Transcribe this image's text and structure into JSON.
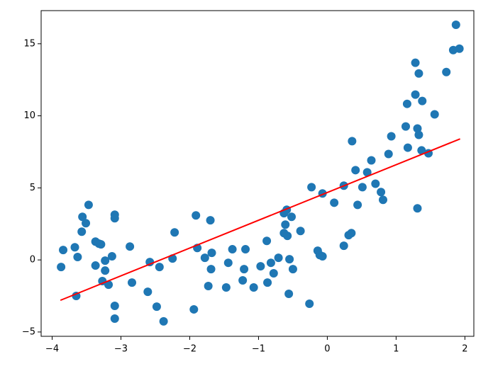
{
  "chart_data": {
    "type": "scatter",
    "xlim": [
      -4.16,
      2.13
    ],
    "ylim": [
      -5.3,
      17.3
    ],
    "xticks": [
      {
        "value": -4,
        "label": "−4"
      },
      {
        "value": -3,
        "label": "−3"
      },
      {
        "value": -2,
        "label": "−2"
      },
      {
        "value": -1,
        "label": "−1"
      },
      0,
      1,
      2
    ],
    "yticks": [
      {
        "value": -5,
        "label": "−5"
      },
      0,
      5,
      10,
      15
    ],
    "grid": false,
    "series": [
      {
        "color": "#1f77b4",
        "x": [
          -3.87,
          -3.84,
          -3.67,
          -3.63,
          -3.65,
          -3.57,
          -3.56,
          -3.51,
          -3.47,
          -3.37,
          -3.37,
          -3.32,
          -3.29,
          -3.27,
          -3.23,
          -3.23,
          -3.18,
          -3.13,
          -3.09,
          -3.09,
          -3.09,
          -3.09,
          -2.87,
          -2.84,
          -2.61,
          -2.58,
          -2.48,
          -2.44,
          -2.38,
          -2.25,
          -2.22,
          -1.94,
          -1.91,
          -1.89,
          -1.78,
          -1.73,
          -1.7,
          -1.68,
          -1.69,
          -1.44,
          -1.47,
          -1.38,
          -1.23,
          -1.21,
          -1.19,
          -1.07,
          -0.97,
          -0.88,
          -0.87,
          -0.82,
          -0.78,
          -0.71,
          -0.63,
          -0.61,
          -0.63,
          -0.59,
          -0.58,
          -0.56,
          -0.55,
          -0.52,
          -0.5,
          -0.39,
          -0.26,
          -0.23,
          -0.14,
          -0.11,
          -0.07,
          -0.07,
          0.1,
          0.24,
          0.24,
          0.31,
          0.35,
          0.36,
          0.41,
          0.44,
          0.51,
          0.58,
          0.64,
          0.7,
          0.78,
          0.81,
          0.89,
          0.93,
          1.14,
          1.16,
          1.17,
          1.28,
          1.28,
          1.31,
          1.33,
          1.31,
          1.33,
          1.37,
          1.38,
          1.47,
          1.56,
          1.73,
          1.83,
          1.87,
          1.92
        ],
        "values": [
          -0.49,
          0.69,
          0.88,
          0.2,
          -2.5,
          1.96,
          2.99,
          2.55,
          3.82,
          1.27,
          -0.39,
          1.13,
          1.08,
          -1.47,
          -0.05,
          -0.74,
          -1.72,
          0.25,
          3.14,
          2.89,
          -3.19,
          -4.07,
          0.93,
          -1.57,
          -2.21,
          -0.15,
          -3.24,
          -0.49,
          -4.26,
          0.1,
          1.91,
          -3.43,
          3.09,
          0.83,
          0.15,
          -1.81,
          2.75,
          0.49,
          -0.64,
          -0.2,
          -1.91,
          0.74,
          -1.42,
          -0.64,
          0.74,
          -1.91,
          -0.44,
          1.32,
          -1.57,
          -0.2,
          -0.93,
          0.15,
          1.86,
          2.45,
          3.24,
          3.48,
          1.67,
          -2.35,
          0.05,
          2.99,
          -0.64,
          2.01,
          -3.04,
          5.05,
          0.64,
          0.34,
          0.25,
          4.61,
          3.97,
          0.98,
          5.15,
          1.72,
          1.86,
          8.24,
          6.23,
          3.82,
          5.05,
          6.08,
          6.91,
          5.29,
          4.71,
          4.17,
          7.35,
          8.58,
          9.26,
          10.83,
          7.79,
          13.68,
          11.47,
          9.12,
          12.94,
          3.58,
          8.68,
          7.6,
          11.03,
          7.4,
          10.1,
          13.04,
          14.56,
          16.32,
          14.66
        ]
      }
    ],
    "lines": [
      {
        "color": "#ff0000",
        "x": [
          -3.88,
          1.93
        ],
        "values": [
          -2.8,
          8.4
        ]
      }
    ]
  }
}
